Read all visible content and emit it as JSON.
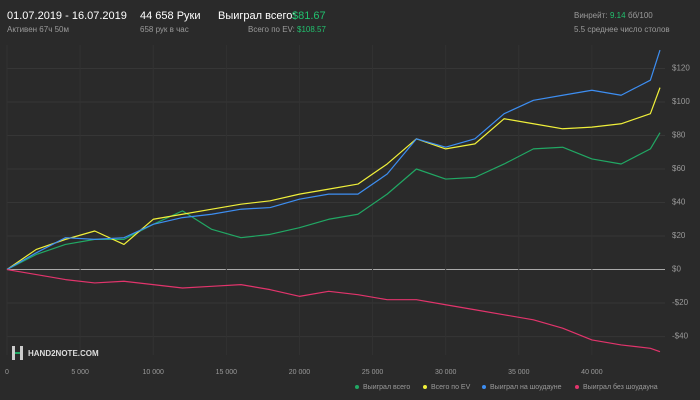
{
  "header": {
    "period": "01.07.2019 - 16.07.2019",
    "active": "Активен 67ч 50м",
    "hands": "44 658 Руки",
    "hands_per_hour": "658 рук в час",
    "won_label": "Выиграл всего:",
    "won_value": "$81.67",
    "ev_label": "Всего по EV:",
    "ev_value": "$108.57",
    "winrate_label": "Винрейт:",
    "winrate_value": "9.14",
    "winrate_unit": "бб/100",
    "tables": "5.5 среднее число столов"
  },
  "logo": "HAND2NOTE.COM",
  "chart_data": {
    "type": "line",
    "x": [
      0,
      2000,
      4000,
      6000,
      8000,
      10000,
      12000,
      14000,
      16000,
      18000,
      20000,
      22000,
      24000,
      26000,
      28000,
      30000,
      32000,
      34000,
      36000,
      38000,
      40000,
      42000,
      44000,
      44658
    ],
    "series": [
      {
        "name": "Выиграл всего",
        "color": "#21a864",
        "values": [
          0,
          9,
          15,
          18,
          18,
          27,
          35,
          24,
          19,
          21,
          25,
          30,
          33,
          45,
          60,
          54,
          55,
          63,
          72,
          73,
          66,
          63,
          72,
          81.67
        ]
      },
      {
        "name": "Всего по EV",
        "color": "#f0f03a",
        "values": [
          0,
          12,
          18,
          23,
          15,
          30,
          33,
          36,
          39,
          41,
          45,
          48,
          51,
          63,
          78,
          72,
          75,
          90,
          87,
          84,
          85,
          87,
          93,
          108.57
        ]
      },
      {
        "name": "Выиграл на шоудауне",
        "color": "#3d8ef2",
        "values": [
          0,
          10,
          19,
          18,
          19,
          27,
          31,
          33,
          36,
          37,
          42,
          45,
          45,
          57,
          78,
          73,
          78,
          93,
          101,
          104,
          107,
          104,
          113,
          131
        ]
      },
      {
        "name": "Выиграл без шоудауна",
        "color": "#e2346c",
        "values": [
          0,
          -3,
          -6,
          -8,
          -7,
          -9,
          -11,
          -10,
          -9,
          -12,
          -16,
          -13,
          -15,
          -18,
          -18,
          -21,
          -24,
          -27,
          -30,
          -35,
          -42,
          -45,
          -47,
          -49
        ]
      }
    ],
    "xlim": [
      0,
      45000
    ],
    "xticks": [
      0,
      {
        "value": 5000,
        "label": "5 000"
      },
      {
        "value": 10000,
        "label": "10 000"
      },
      {
        "value": 15000,
        "label": "15 000"
      },
      {
        "value": 20000,
        "label": "20 000"
      },
      {
        "value": 25000,
        "label": "25 000"
      },
      {
        "value": 30000,
        "label": "30 000"
      },
      {
        "value": 35000,
        "label": "35 000"
      },
      {
        "value": 40000,
        "label": "40 000"
      }
    ],
    "ylim": [
      -51,
      134
    ],
    "yticks": [
      {
        "value": -40,
        "label": "-$40"
      },
      {
        "value": -20,
        "label": "-$20"
      },
      {
        "value": 0,
        "label": "$0"
      },
      {
        "value": 20,
        "label": "$20"
      },
      {
        "value": 40,
        "label": "$40"
      },
      {
        "value": 60,
        "label": "$60"
      },
      {
        "value": 80,
        "label": "$80"
      },
      {
        "value": 100,
        "label": "$100"
      },
      {
        "value": 120,
        "label": "$120"
      }
    ],
    "grid": true
  }
}
